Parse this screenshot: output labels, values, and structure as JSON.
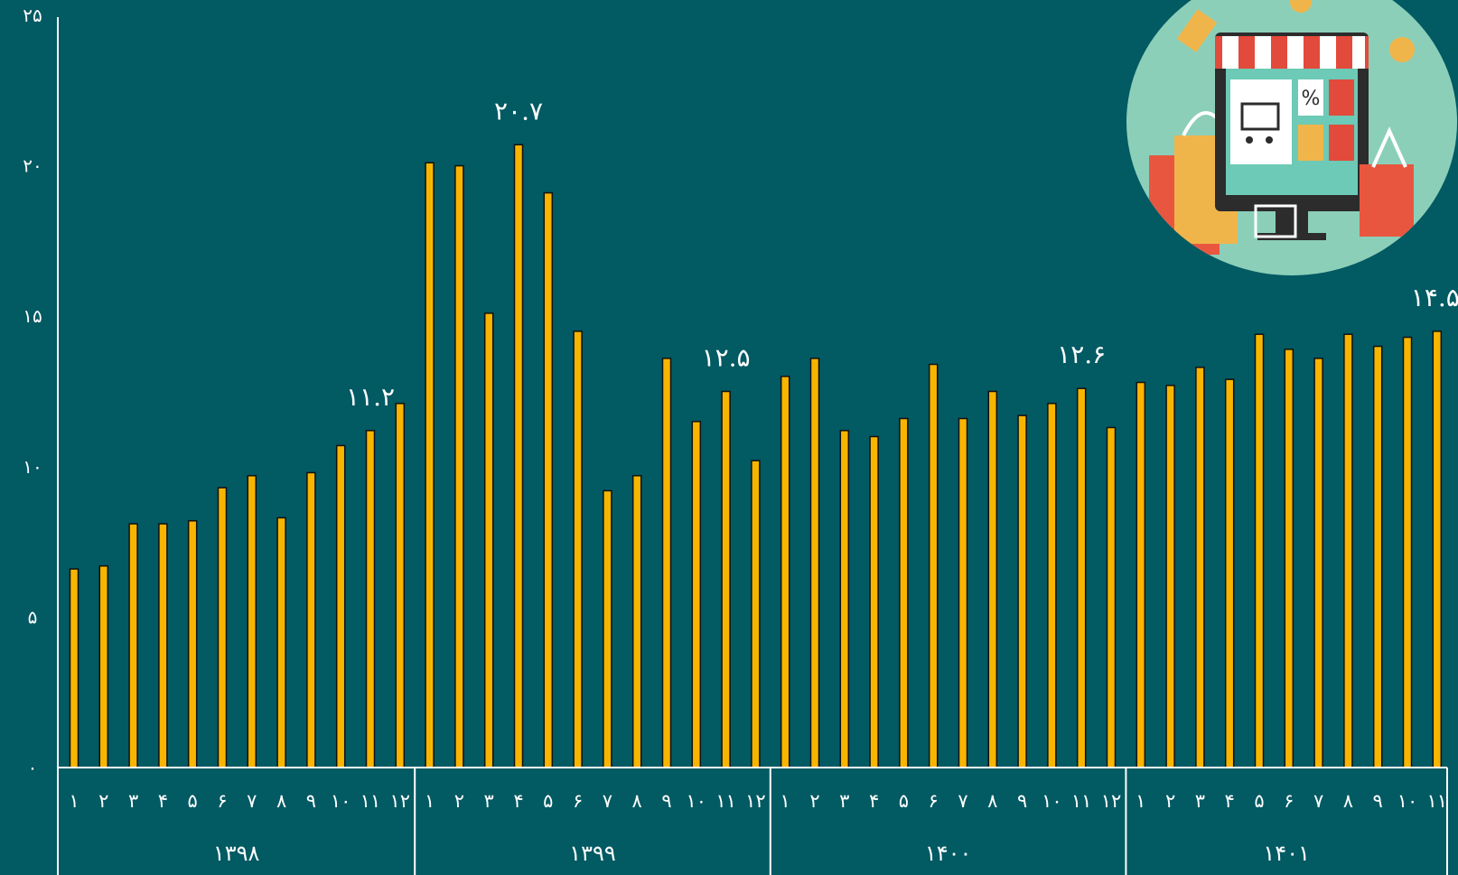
{
  "chart_data": {
    "type": "bar",
    "title": "",
    "xlabel": "",
    "ylabel": "",
    "ylim": [
      0,
      25
    ],
    "y_ticks": [
      "۰",
      "۵",
      "۱۰",
      "۱۵",
      "۲۰",
      "۲۵"
    ],
    "y_tick_values": [
      0,
      5,
      10,
      15,
      20,
      25
    ],
    "groups": [
      {
        "year": "۱۳۹۸",
        "months": [
          "۱",
          "۲",
          "۳",
          "۴",
          "۵",
          "۶",
          "۷",
          "۸",
          "۹",
          "۱۰",
          "۱۱",
          "۱۲"
        ],
        "values": [
          6.6,
          6.7,
          8.1,
          8.1,
          8.2,
          9.3,
          9.7,
          8.3,
          9.8,
          10.7,
          11.2,
          12.1
        ]
      },
      {
        "year": "۱۳۹۹",
        "months": [
          "۱",
          "۲",
          "۳",
          "۴",
          "۵",
          "۶",
          "۷",
          "۸",
          "۹",
          "۱۰",
          "۱۱",
          "۱۲"
        ],
        "values": [
          20.1,
          20.0,
          15.1,
          20.7,
          19.1,
          14.5,
          9.2,
          9.7,
          13.6,
          11.5,
          12.5,
          10.2
        ]
      },
      {
        "year": "۱۴۰۰",
        "months": [
          "۱",
          "۲",
          "۳",
          "۴",
          "۵",
          "۶",
          "۷",
          "۸",
          "۹",
          "۱۰",
          "۱۱",
          "۱۲"
        ],
        "values": [
          13.0,
          13.6,
          11.2,
          11.0,
          11.6,
          13.4,
          11.6,
          12.5,
          11.7,
          12.1,
          12.6,
          11.3
        ]
      },
      {
        "year": "۱۴۰۱",
        "months": [
          "۱",
          "۲",
          "۳",
          "۴",
          "۵",
          "۶",
          "۷",
          "۸",
          "۹",
          "۱۰",
          "۱۱"
        ],
        "values": [
          12.8,
          12.7,
          13.3,
          12.9,
          14.4,
          13.9,
          13.6,
          14.4,
          14.0,
          14.3,
          14.5
        ]
      }
    ],
    "annotations": [
      {
        "text": "۱۱.۲",
        "group": 0,
        "index": 10
      },
      {
        "text": "۲۰.۷",
        "group": 1,
        "index": 3
      },
      {
        "text": "۱۲.۵",
        "group": 1,
        "index": 10
      },
      {
        "text": "۱۲.۶",
        "group": 2,
        "index": 10
      },
      {
        "text": "۱۴.۵",
        "group": 3,
        "index": 10
      }
    ],
    "grid": false,
    "legend": "none",
    "colors": {
      "background": "#025a63",
      "bar": "#f7b500",
      "bar_outline": "#111111",
      "text": "#ffffff"
    }
  },
  "decoration": {
    "icon": "online-shop-icon"
  }
}
